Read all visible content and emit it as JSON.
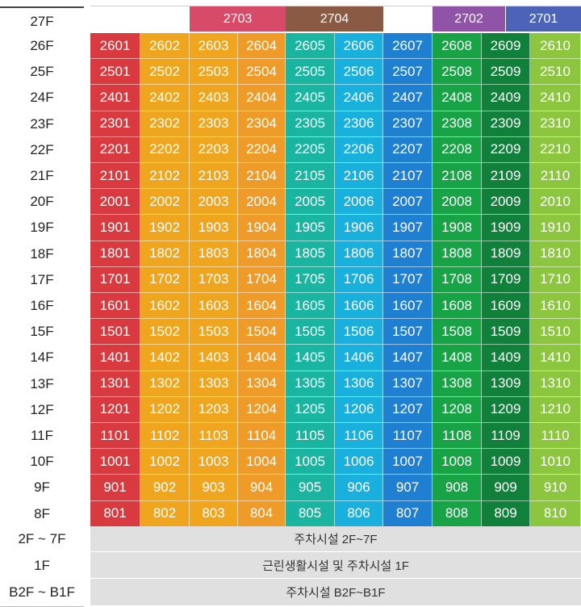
{
  "floors": [
    "27F",
    "26F",
    "25F",
    "24F",
    "23F",
    "22F",
    "21F",
    "20F",
    "19F",
    "18F",
    "17F",
    "16F",
    "15F",
    "14F",
    "13F",
    "12F",
    "11F",
    "10F",
    "9F",
    "8F",
    "2F ~ 7F",
    "1F",
    "B2F ~ B1F"
  ],
  "penthouses": [
    {
      "label": "2703",
      "color": "#d74b68"
    },
    {
      "label": "2704",
      "color": "#8a5a44"
    },
    {
      "label": "2702",
      "color": "#8f53a8"
    },
    {
      "label": "2701",
      "color": "#4c63b8"
    }
  ],
  "column_colors": [
    "#d93a3f",
    "#f0a51f",
    "#f0a51f",
    "#ee9b29",
    "#19b5a0",
    "#19b0de",
    "#1f80d2",
    "#19a347",
    "#11803b",
    "#8cc63f"
  ],
  "unit_rows": [
    [
      "2601",
      "2602",
      "2603",
      "2604",
      "2605",
      "2606",
      "2607",
      "2608",
      "2609",
      "2610"
    ],
    [
      "2501",
      "2502",
      "2503",
      "2504",
      "2505",
      "2506",
      "2507",
      "2508",
      "2509",
      "2510"
    ],
    [
      "2401",
      "2402",
      "2403",
      "2404",
      "2405",
      "2406",
      "2407",
      "2408",
      "2409",
      "2410"
    ],
    [
      "2301",
      "2302",
      "2303",
      "2304",
      "2305",
      "2306",
      "2307",
      "2308",
      "2309",
      "2310"
    ],
    [
      "2201",
      "2202",
      "2203",
      "2204",
      "2205",
      "2206",
      "2207",
      "2208",
      "2209",
      "2210"
    ],
    [
      "2101",
      "2102",
      "2103",
      "2104",
      "2105",
      "2106",
      "2107",
      "2108",
      "2109",
      "2110"
    ],
    [
      "2001",
      "2002",
      "2003",
      "2004",
      "2005",
      "2006",
      "2007",
      "2008",
      "2009",
      "2010"
    ],
    [
      "1901",
      "1902",
      "1903",
      "1904",
      "1905",
      "1906",
      "1907",
      "1908",
      "1909",
      "1910"
    ],
    [
      "1801",
      "1802",
      "1803",
      "1804",
      "1805",
      "1806",
      "1807",
      "1808",
      "1809",
      "1810"
    ],
    [
      "1701",
      "1702",
      "1703",
      "1704",
      "1705",
      "1706",
      "1707",
      "1708",
      "1709",
      "1710"
    ],
    [
      "1601",
      "1602",
      "1603",
      "1604",
      "1605",
      "1606",
      "1607",
      "1608",
      "1609",
      "1610"
    ],
    [
      "1501",
      "1502",
      "1503",
      "1504",
      "1505",
      "1506",
      "1507",
      "1508",
      "1509",
      "1510"
    ],
    [
      "1401",
      "1402",
      "1403",
      "1404",
      "1405",
      "1406",
      "1407",
      "1408",
      "1409",
      "1410"
    ],
    [
      "1301",
      "1302",
      "1303",
      "1304",
      "1305",
      "1306",
      "1307",
      "1308",
      "1309",
      "1310"
    ],
    [
      "1201",
      "1202",
      "1203",
      "1204",
      "1205",
      "1206",
      "1207",
      "1208",
      "1209",
      "1210"
    ],
    [
      "1101",
      "1102",
      "1103",
      "1104",
      "1105",
      "1106",
      "1107",
      "1108",
      "1109",
      "1110"
    ],
    [
      "1001",
      "1002",
      "1003",
      "1004",
      "1005",
      "1006",
      "1007",
      "1008",
      "1009",
      "1010"
    ],
    [
      "901",
      "902",
      "903",
      "904",
      "905",
      "906",
      "907",
      "908",
      "909",
      "910"
    ],
    [
      "801",
      "802",
      "803",
      "804",
      "805",
      "806",
      "807",
      "808",
      "809",
      "810"
    ]
  ],
  "facilities": [
    "주차시설 2F~7F",
    "근린생활시설 및 주차시설 1F",
    "주차시설 B2F~B1F"
  ]
}
